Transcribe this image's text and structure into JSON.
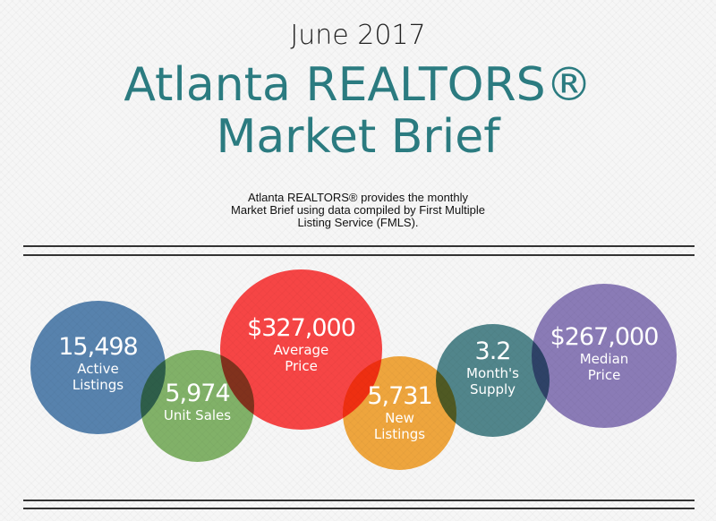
{
  "header": {
    "date": "June 2017",
    "title_line1": "Atlanta REALTORS®",
    "title_line2": "Market Brief",
    "intro_line1": "Atlanta REALTORS® provides the monthly",
    "intro_line2": "Market Brief using data compiled by First Multiple",
    "intro_line3": "Listing Service (FMLS)."
  },
  "stats": [
    {
      "value": "15,498",
      "label1": "Active",
      "label2": "Listings",
      "color": "#5a87b4"
    },
    {
      "value": "5,974",
      "label1": "Unit Sales",
      "label2": "",
      "color": "#86b86c"
    },
    {
      "value": "$327,000",
      "label1": "Average",
      "label2": "Price",
      "color": "#ff4747"
    },
    {
      "value": "5,731",
      "label1": "New",
      "label2": "Listings",
      "color": "#f7ab3f"
    },
    {
      "value": "3.2",
      "label1": "Month's",
      "label2": "Supply",
      "color": "#548a90"
    },
    {
      "value": "$267,000",
      "label1": "Median",
      "label2": "Price",
      "color": "#8f7fbd"
    }
  ]
}
